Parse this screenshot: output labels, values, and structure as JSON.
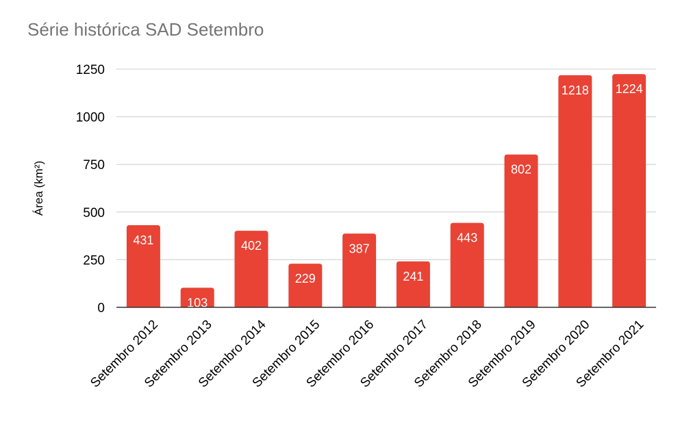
{
  "colors": {
    "bar": "#e84335",
    "grid": "#cccccc",
    "axis": "#333333",
    "title": "#757575",
    "data_label": "#ffffff"
  },
  "chart_data": {
    "type": "bar",
    "title": "Série histórica SAD Setembro",
    "xlabel": "",
    "ylabel": "Área (km²)",
    "ylim": [
      0,
      1250
    ],
    "yticks": [
      0,
      250,
      500,
      750,
      1000,
      1250
    ],
    "grid": true,
    "legend": "none",
    "categories": [
      "Setembro 2012",
      "Setembro 2013",
      "Setembro 2014",
      "Setembro 2015",
      "Setembro 2016",
      "Setembro 2017",
      "Setembro 2018",
      "Setembro 2019",
      "Setembro 2020",
      "Setembro 2021"
    ],
    "values": [
      431,
      103,
      402,
      229,
      387,
      241,
      443,
      802,
      1218,
      1224
    ]
  }
}
